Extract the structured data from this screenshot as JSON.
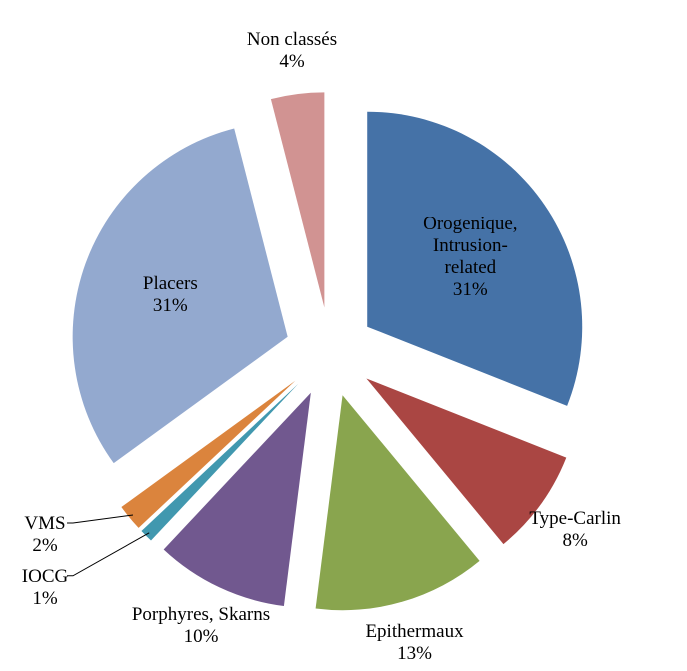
{
  "chart_data": {
    "type": "pie",
    "categories": [
      "Orogenique, Intrusion-related",
      "Type-Carlin",
      "Epithermaux",
      "Porphyres, Skarns",
      "IOCG",
      "VMS",
      "Placers",
      "Non classés"
    ],
    "values": [
      31,
      8,
      13,
      10,
      1,
      2,
      31,
      4
    ],
    "value_labels": [
      "31%",
      "8%",
      "13%",
      "10%",
      "1%",
      "2%",
      "31%",
      "4%"
    ],
    "colors": [
      "#4572a7",
      "#aa4643",
      "#89a54e",
      "#71588f",
      "#4198af",
      "#db843d",
      "#93a9cf",
      "#d19392"
    ]
  }
}
